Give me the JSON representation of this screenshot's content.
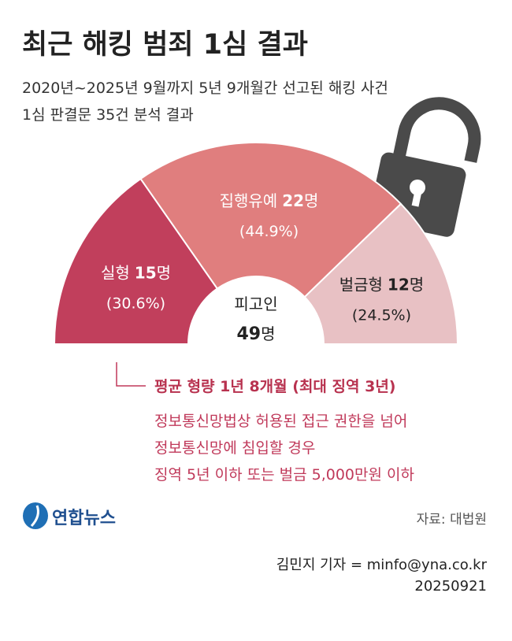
{
  "chart_data": {
    "type": "pie",
    "title": "최근 해킹 범죄 1심 결과",
    "subtitle": [
      "2020년~2025년 9월까지 5년 9개월간 선고된 해킹 사건",
      "1심 판결문 35건 분석 결과"
    ],
    "categories": [
      "실형",
      "집행유예",
      "벌금형"
    ],
    "values": [
      15,
      22,
      12
    ],
    "unit": "명",
    "share_labels": [
      "(30.6%)",
      "(44.9%)",
      "(24.5%)"
    ],
    "colors": [
      "#c13f5c",
      "#e07e7e",
      "#e8c1c4"
    ],
    "center_label": "피고인",
    "total": 49,
    "annotation": {
      "title": "평균 형량 1년 8개월 (최대 징역 3년)",
      "lines": [
        "정보통신망법상 허용된 접근 권한을 넘어",
        "정보통신망에 침입할 경우",
        "징역 5년 이하 또는 벌금 5,000만원 이하"
      ]
    },
    "logo": "연합뉴스",
    "source": "자료: 대법원",
    "byline": "김민지 기자 = minfo@yna.co.kr",
    "date": "20250921"
  }
}
